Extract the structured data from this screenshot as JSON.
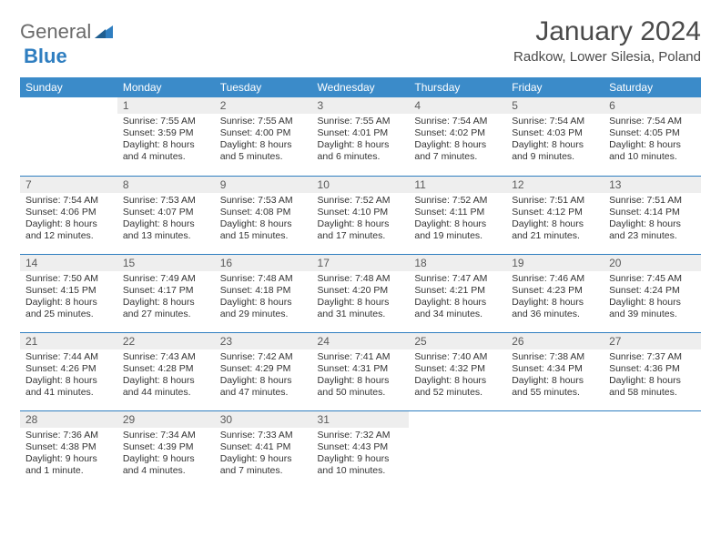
{
  "brand": {
    "part1": "General",
    "part2": "Blue"
  },
  "colors": {
    "header_bg": "#3b8bc9",
    "border": "#2f7ec0",
    "daynum_bg": "#eeeeee",
    "text": "#333333",
    "title": "#4a4a4a"
  },
  "title": "January 2024",
  "location": "Radkow, Lower Silesia, Poland",
  "weekdays": [
    "Sunday",
    "Monday",
    "Tuesday",
    "Wednesday",
    "Thursday",
    "Friday",
    "Saturday"
  ],
  "start_offset": 1,
  "days": [
    {
      "n": 1,
      "sunrise": "7:55 AM",
      "sunset": "3:59 PM",
      "daylight": "8 hours and 4 minutes."
    },
    {
      "n": 2,
      "sunrise": "7:55 AM",
      "sunset": "4:00 PM",
      "daylight": "8 hours and 5 minutes."
    },
    {
      "n": 3,
      "sunrise": "7:55 AM",
      "sunset": "4:01 PM",
      "daylight": "8 hours and 6 minutes."
    },
    {
      "n": 4,
      "sunrise": "7:54 AM",
      "sunset": "4:02 PM",
      "daylight": "8 hours and 7 minutes."
    },
    {
      "n": 5,
      "sunrise": "7:54 AM",
      "sunset": "4:03 PM",
      "daylight": "8 hours and 9 minutes."
    },
    {
      "n": 6,
      "sunrise": "7:54 AM",
      "sunset": "4:05 PM",
      "daylight": "8 hours and 10 minutes."
    },
    {
      "n": 7,
      "sunrise": "7:54 AM",
      "sunset": "4:06 PM",
      "daylight": "8 hours and 12 minutes."
    },
    {
      "n": 8,
      "sunrise": "7:53 AM",
      "sunset": "4:07 PM",
      "daylight": "8 hours and 13 minutes."
    },
    {
      "n": 9,
      "sunrise": "7:53 AM",
      "sunset": "4:08 PM",
      "daylight": "8 hours and 15 minutes."
    },
    {
      "n": 10,
      "sunrise": "7:52 AM",
      "sunset": "4:10 PM",
      "daylight": "8 hours and 17 minutes."
    },
    {
      "n": 11,
      "sunrise": "7:52 AM",
      "sunset": "4:11 PM",
      "daylight": "8 hours and 19 minutes."
    },
    {
      "n": 12,
      "sunrise": "7:51 AM",
      "sunset": "4:12 PM",
      "daylight": "8 hours and 21 minutes."
    },
    {
      "n": 13,
      "sunrise": "7:51 AM",
      "sunset": "4:14 PM",
      "daylight": "8 hours and 23 minutes."
    },
    {
      "n": 14,
      "sunrise": "7:50 AM",
      "sunset": "4:15 PM",
      "daylight": "8 hours and 25 minutes."
    },
    {
      "n": 15,
      "sunrise": "7:49 AM",
      "sunset": "4:17 PM",
      "daylight": "8 hours and 27 minutes."
    },
    {
      "n": 16,
      "sunrise": "7:48 AM",
      "sunset": "4:18 PM",
      "daylight": "8 hours and 29 minutes."
    },
    {
      "n": 17,
      "sunrise": "7:48 AM",
      "sunset": "4:20 PM",
      "daylight": "8 hours and 31 minutes."
    },
    {
      "n": 18,
      "sunrise": "7:47 AM",
      "sunset": "4:21 PM",
      "daylight": "8 hours and 34 minutes."
    },
    {
      "n": 19,
      "sunrise": "7:46 AM",
      "sunset": "4:23 PM",
      "daylight": "8 hours and 36 minutes."
    },
    {
      "n": 20,
      "sunrise": "7:45 AM",
      "sunset": "4:24 PM",
      "daylight": "8 hours and 39 minutes."
    },
    {
      "n": 21,
      "sunrise": "7:44 AM",
      "sunset": "4:26 PM",
      "daylight": "8 hours and 41 minutes."
    },
    {
      "n": 22,
      "sunrise": "7:43 AM",
      "sunset": "4:28 PM",
      "daylight": "8 hours and 44 minutes."
    },
    {
      "n": 23,
      "sunrise": "7:42 AM",
      "sunset": "4:29 PM",
      "daylight": "8 hours and 47 minutes."
    },
    {
      "n": 24,
      "sunrise": "7:41 AM",
      "sunset": "4:31 PM",
      "daylight": "8 hours and 50 minutes."
    },
    {
      "n": 25,
      "sunrise": "7:40 AM",
      "sunset": "4:32 PM",
      "daylight": "8 hours and 52 minutes."
    },
    {
      "n": 26,
      "sunrise": "7:38 AM",
      "sunset": "4:34 PM",
      "daylight": "8 hours and 55 minutes."
    },
    {
      "n": 27,
      "sunrise": "7:37 AM",
      "sunset": "4:36 PM",
      "daylight": "8 hours and 58 minutes."
    },
    {
      "n": 28,
      "sunrise": "7:36 AM",
      "sunset": "4:38 PM",
      "daylight": "9 hours and 1 minute."
    },
    {
      "n": 29,
      "sunrise": "7:34 AM",
      "sunset": "4:39 PM",
      "daylight": "9 hours and 4 minutes."
    },
    {
      "n": 30,
      "sunrise": "7:33 AM",
      "sunset": "4:41 PM",
      "daylight": "9 hours and 7 minutes."
    },
    {
      "n": 31,
      "sunrise": "7:32 AM",
      "sunset": "4:43 PM",
      "daylight": "9 hours and 10 minutes."
    }
  ],
  "labels": {
    "sunrise": "Sunrise:",
    "sunset": "Sunset:",
    "daylight": "Daylight:"
  }
}
